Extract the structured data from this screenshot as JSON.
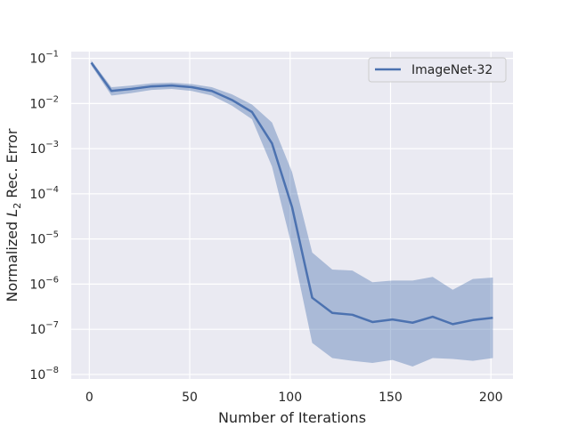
{
  "chart_data": {
    "type": "line",
    "xlabel": "Number of Iterations",
    "ylabel": "Normalized  L2 Rec. Error",
    "xlim": [
      -9,
      211
    ],
    "ylim_log10": [
      -8.1,
      -0.85
    ],
    "yscale": "log",
    "x_ticks": [
      0,
      50,
      100,
      150,
      200
    ],
    "y_ticks": [
      {
        "exp": -1,
        "label": "10−1"
      },
      {
        "exp": -2,
        "label": "10−2"
      },
      {
        "exp": -3,
        "label": "10−3"
      },
      {
        "exp": -4,
        "label": "10−4"
      },
      {
        "exp": -5,
        "label": "10−5"
      },
      {
        "exp": -6,
        "label": "10−6"
      },
      {
        "exp": -7,
        "label": "10−7"
      },
      {
        "exp": -8,
        "label": "10−8"
      }
    ],
    "grid": true,
    "legend_position": "top-right",
    "series": [
      {
        "name": "ImageNet-32",
        "color": "#4c72b0",
        "band_color": "#4c72b0",
        "x": [
          1,
          11,
          21,
          31,
          41,
          51,
          61,
          71,
          81,
          91,
          101,
          111,
          121,
          131,
          141,
          151,
          161,
          171,
          181,
          191,
          201
        ],
        "y": [
          0.08,
          0.019,
          0.021,
          0.024,
          0.025,
          0.023,
          0.019,
          0.012,
          0.0065,
          0.0013,
          5e-05,
          5e-07,
          2.3e-07,
          2.1e-07,
          1.45e-07,
          1.65e-07,
          1.4e-07,
          1.9e-07,
          1.3e-07,
          1.6e-07,
          1.8e-07
        ],
        "lower": [
          0.07,
          0.015,
          0.017,
          0.02,
          0.021,
          0.019,
          0.015,
          0.009,
          0.0045,
          0.0004,
          6.5e-06,
          5e-08,
          2.3e-08,
          2e-08,
          1.8e-08,
          2.1e-08,
          1.5e-08,
          2.3e-08,
          2.2e-08,
          2e-08,
          2.3e-08
        ],
        "upper": [
          0.09,
          0.023,
          0.025,
          0.028,
          0.029,
          0.027,
          0.023,
          0.016,
          0.0095,
          0.0038,
          0.0003,
          5e-06,
          2.1e-06,
          2e-06,
          1.1e-06,
          1.2e-06,
          1.2e-06,
          1.45e-06,
          7.5e-07,
          1.3e-06,
          1.4e-06
        ]
      }
    ]
  }
}
